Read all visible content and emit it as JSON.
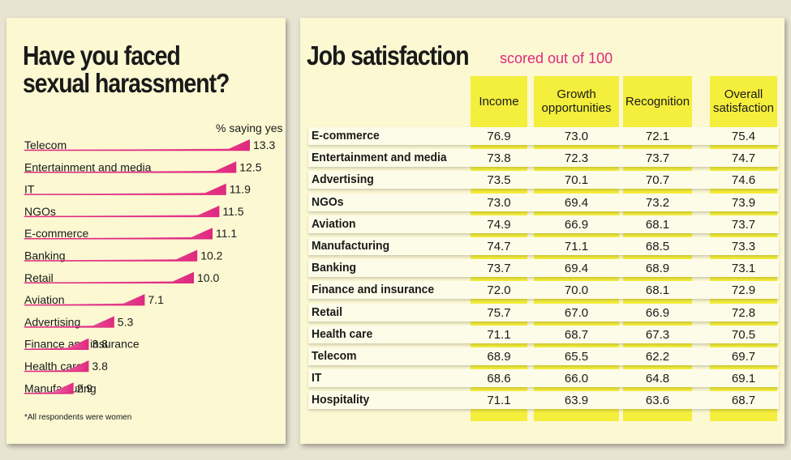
{
  "colors": {
    "background": "#e9e4d2",
    "panel": "#fbf8d2",
    "bar_start": "#f7c1e0",
    "bar_end": "#e0297f",
    "column_highlight": "#f4ee3c",
    "subtitle": "#e0297f"
  },
  "harassment": {
    "title_line1": "Have you faced",
    "title_line2": "sexual harassment?",
    "unit": "% saying yes",
    "footnote": "*All respondents were women"
  },
  "job": {
    "title": "Job satisfaction",
    "subtitle": "scored out of 100"
  },
  "chart_data": [
    {
      "type": "bar",
      "orientation": "horizontal",
      "title": "Have you faced sexual harassment?",
      "unit": "% saying yes",
      "categories": [
        "Telecom",
        "Entertainment and media",
        "IT",
        "NGOs",
        "E-commerce",
        "Banking",
        "Retail",
        "Aviation",
        "Advertising",
        "Finance and insurance",
        "Health care",
        "Manufacturing"
      ],
      "values": [
        13.3,
        12.5,
        11.9,
        11.5,
        11.1,
        10.2,
        10.0,
        7.1,
        5.3,
        3.8,
        3.8,
        2.9
      ],
      "value_labels": [
        "13.3",
        "12.5",
        "11.9",
        "11.5",
        "11.1",
        "10.2",
        "10.0",
        "7.1",
        "5.3",
        "3.8",
        "3.8",
        "2.9"
      ],
      "xlim": [
        0,
        13.3
      ]
    },
    {
      "type": "table",
      "title": "Job satisfaction",
      "subtitle": "scored out of 100",
      "columns": [
        "Income",
        "Growth opportunities",
        "Recognition",
        "Overall satisfaction"
      ],
      "column_header_lines": [
        [
          "Income"
        ],
        [
          "Growth",
          "opportunities"
        ],
        [
          "Recognition"
        ],
        [
          "Overall",
          "satisfaction"
        ]
      ],
      "rows": [
        {
          "label": "E-commerce",
          "values": [
            "76.9",
            "73.0",
            "72.1",
            "75.4"
          ]
        },
        {
          "label": "Entertainment and media",
          "values": [
            "73.8",
            "72.3",
            "73.7",
            "74.7"
          ]
        },
        {
          "label": "Advertising",
          "values": [
            "73.5",
            "70.1",
            "70.7",
            "74.6"
          ]
        },
        {
          "label": "NGOs",
          "values": [
            "73.0",
            "69.4",
            "73.2",
            "73.9"
          ]
        },
        {
          "label": "Aviation",
          "values": [
            "74.9",
            "66.9",
            "68.1",
            "73.7"
          ]
        },
        {
          "label": "Manufacturing",
          "values": [
            "74.7",
            "71.1",
            "68.5",
            "73.3"
          ]
        },
        {
          "label": "Banking",
          "values": [
            "73.7",
            "69.4",
            "68.9",
            "73.1"
          ]
        },
        {
          "label": "Finance and insurance",
          "values": [
            "72.0",
            "70.0",
            "68.1",
            "72.9"
          ]
        },
        {
          "label": "Retail",
          "values": [
            "75.7",
            "67.0",
            "66.9",
            "72.8"
          ]
        },
        {
          "label": "Health care",
          "values": [
            "71.1",
            "68.7",
            "67.3",
            "70.5"
          ]
        },
        {
          "label": "Telecom",
          "values": [
            "68.9",
            "65.5",
            "62.2",
            "69.7"
          ]
        },
        {
          "label": "IT",
          "values": [
            "68.6",
            "66.0",
            "64.8",
            "69.1"
          ]
        },
        {
          "label": "Hospitality",
          "values": [
            "71.1",
            "63.9",
            "63.6",
            "68.7"
          ]
        }
      ]
    }
  ]
}
